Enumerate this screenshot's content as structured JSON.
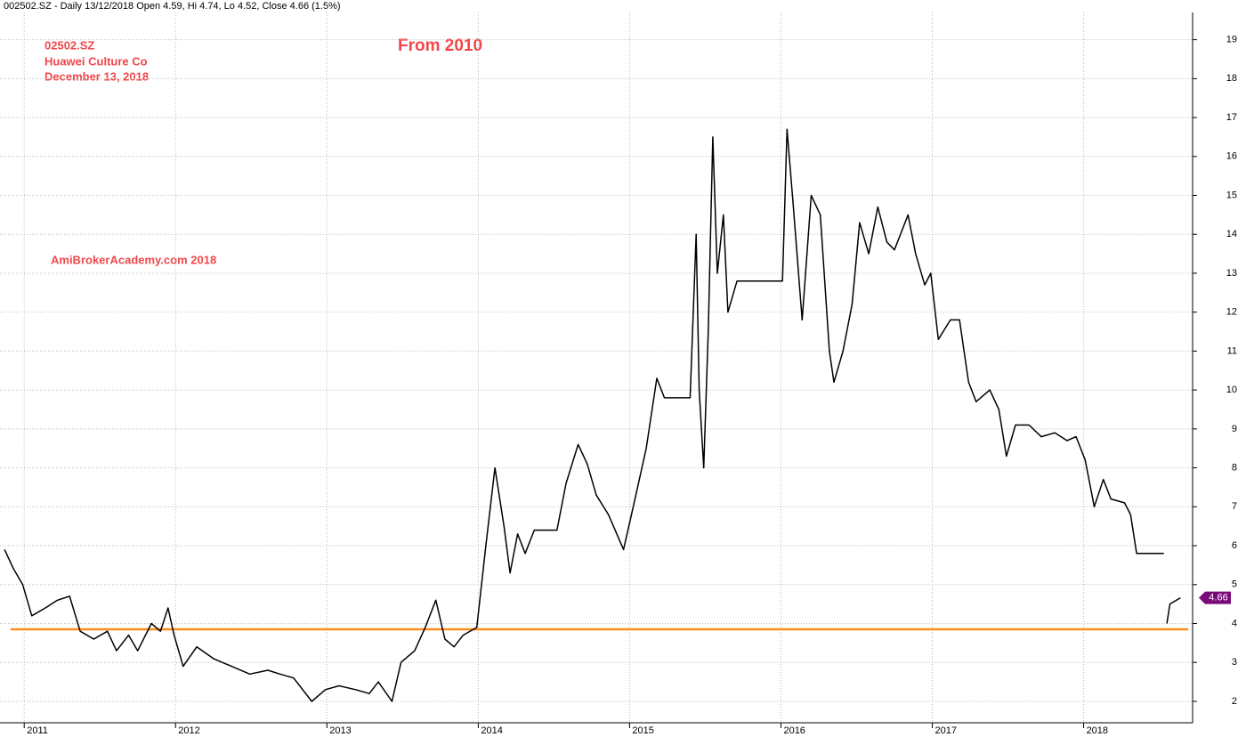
{
  "chart_data": {
    "type": "line",
    "header": "002502.SZ - Daily 13/12/2018 Open 4.59, Hi 4.74, Lo 4.52, Close 4.66 (1.5%)",
    "annotations": [
      "02502.SZ",
      "Huawei Culture Co",
      "December 13, 2018",
      "From 2010",
      "AmiBrokerAcademy.com  2018"
    ],
    "series": [
      {
        "name": "002502.SZ",
        "color": "#000000",
        "x": [
          2010.87,
          2010.93,
          2010.99,
          2011.05,
          2011.14,
          2011.22,
          2011.3,
          2011.37,
          2011.46,
          2011.55,
          2011.61,
          2011.69,
          2011.75,
          2011.84,
          2011.9,
          2011.95,
          2011.99,
          2012.05,
          2012.14,
          2012.25,
          2012.37,
          2012.49,
          2012.61,
          2012.69,
          2012.78,
          2012.9,
          2012.99,
          2013.08,
          2013.19,
          2013.28,
          2013.34,
          2013.43,
          2013.49,
          2013.58,
          2013.65,
          2013.72,
          2013.78,
          2013.84,
          2013.9,
          2013.99,
          2014.05,
          2014.11,
          2014.17,
          2014.21,
          2014.26,
          2014.31,
          2014.37,
          2014.52,
          2014.58,
          2014.66,
          2014.72,
          2014.78,
          2014.86,
          2014.96,
          2015.03,
          2015.11,
          2015.18,
          2015.23,
          2015.4,
          2015.44,
          2015.46,
          2015.49,
          2015.52,
          2015.55,
          2015.58,
          2015.62,
          2015.65,
          2015.71,
          2016.01,
          2016.04,
          2016.08,
          2016.14,
          2016.2,
          2016.26,
          2016.32,
          2016.35,
          2016.41,
          2016.47,
          2016.52,
          2016.58,
          2016.64,
          2016.7,
          2016.75,
          2016.84,
          2016.89,
          2016.95,
          2016.99,
          2017.04,
          2017.12,
          2017.18,
          2017.24,
          2017.29,
          2017.38,
          2017.44,
          2017.49,
          2017.55,
          2017.64,
          2017.72,
          2017.81,
          2017.89,
          2017.95,
          2018.01,
          2018.07,
          2018.13,
          2018.18,
          2018.27,
          2018.31,
          2018.35,
          2018.53,
          2018.54,
          2018.55,
          2018.57,
          2018.64
        ],
        "values": [
          5.9,
          5.4,
          5.0,
          4.2,
          4.4,
          4.6,
          4.7,
          3.8,
          3.6,
          3.8,
          3.3,
          3.7,
          3.3,
          4.0,
          3.8,
          4.4,
          3.7,
          2.9,
          3.4,
          3.1,
          2.9,
          2.7,
          2.8,
          2.7,
          2.6,
          2.0,
          2.3,
          2.4,
          2.3,
          2.2,
          2.5,
          2.0,
          3.0,
          3.3,
          3.9,
          4.6,
          3.6,
          3.4,
          3.7,
          3.9,
          6.0,
          8.0,
          6.5,
          5.3,
          6.3,
          5.8,
          6.4,
          6.4,
          7.6,
          8.6,
          8.1,
          7.3,
          6.8,
          5.9,
          7.1,
          8.5,
          10.3,
          9.8,
          9.8,
          14.0,
          10.0,
          8.0,
          11.5,
          16.5,
          13.0,
          14.5,
          12.0,
          12.8,
          12.8,
          16.7,
          14.8,
          11.8,
          15.0,
          14.5,
          11.0,
          10.2,
          11.0,
          12.2,
          14.3,
          13.5,
          14.7,
          13.8,
          13.6,
          14.5,
          13.5,
          12.7,
          13.0,
          11.3,
          11.8,
          11.8,
          10.2,
          9.7,
          10.0,
          9.5,
          8.3,
          9.1,
          9.1,
          8.8,
          8.9,
          8.7,
          8.8,
          8.2,
          7.0,
          7.7,
          7.2,
          7.1,
          6.8,
          5.8,
          5.8,
          null,
          4.0,
          4.5,
          4.66
        ]
      }
    ],
    "xlim": [
      2010.84,
      2018.72
    ],
    "xticks": [
      2011,
      2012,
      2013,
      2014,
      2015,
      2016,
      2017,
      2018
    ],
    "ylim": [
      1.45,
      19.7
    ],
    "yticks": [
      2,
      3,
      4,
      5,
      6,
      7,
      8,
      9,
      10,
      11,
      12,
      13,
      14,
      15,
      16,
      17,
      18,
      19
    ],
    "grid": true,
    "hline": {
      "value": 3.85,
      "color": "#ff8c1a"
    },
    "last_label": {
      "value": 4.66,
      "color": "#7a0a7a"
    }
  }
}
